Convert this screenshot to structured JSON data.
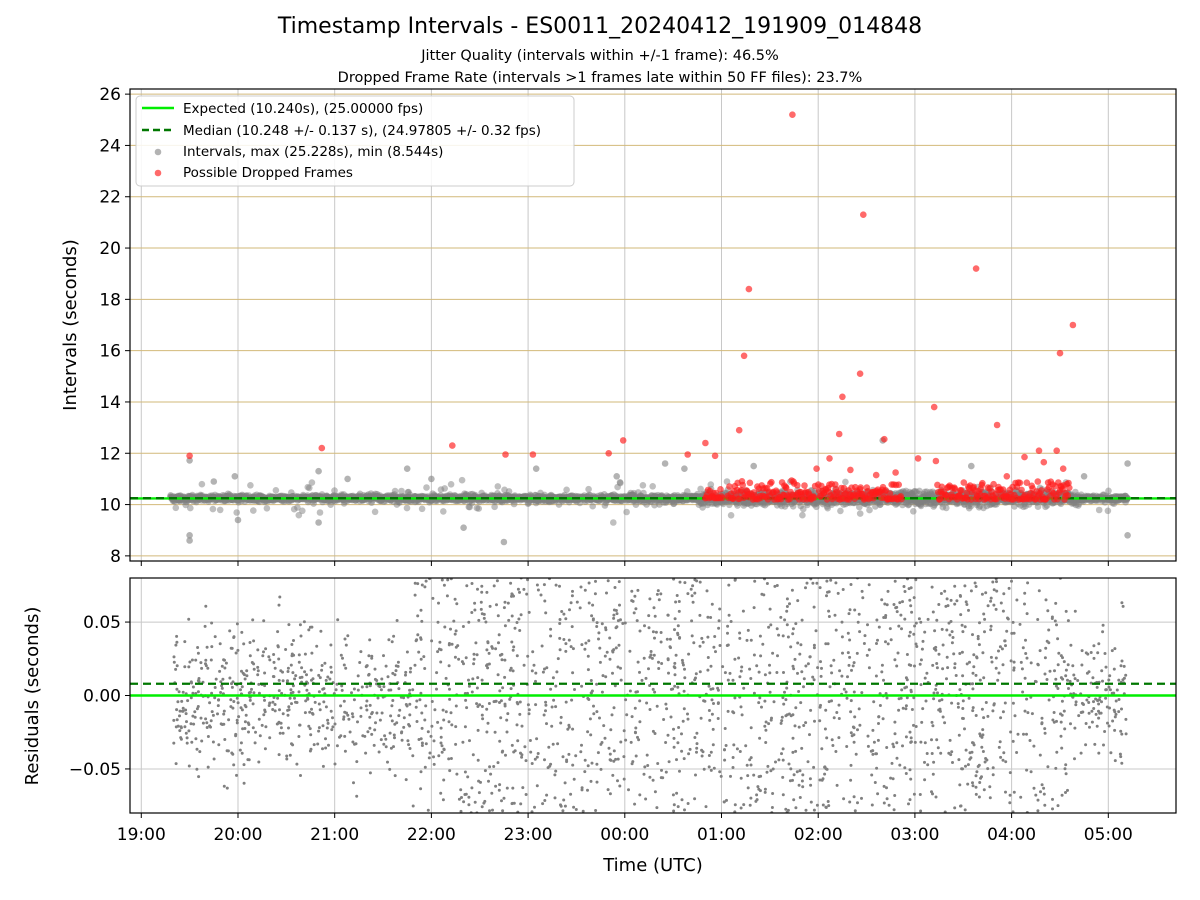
{
  "figure": {
    "title": "Timestamp Intervals - ES0011_20240412_191909_014848",
    "subtitle_1": "Jitter Quality (intervals within +/-1 frame): 46.5%",
    "subtitle_2": "Dropped Frame Rate (intervals >1 frames late within 50 FF files): 23.7%"
  },
  "colors": {
    "expected": "#00ee00",
    "median": "#007700",
    "intervals": "#808080",
    "dropped": "#ff1a1a",
    "hgrid_top": "#d2b97a",
    "grid": "#c8c8c8"
  },
  "chart_data": [
    {
      "type": "scatter",
      "panel": "intervals",
      "ylabel": "Intervals (seconds)",
      "xlim": [
        "18:53",
        "05:42"
      ],
      "ylim": [
        7.8,
        26.2
      ],
      "yticks": [
        8,
        10,
        12,
        14,
        16,
        18,
        20,
        22,
        24,
        26
      ],
      "grid": true,
      "legend_placement": "top-left",
      "legend": [
        "Expected (10.240s), (25.00000 fps)",
        "Median (10.248 +/- 0.137 s), (24.97805 +/- 0.32 fps)",
        "Intervals, max (25.228s), min (8.544s)",
        "Possible Dropped Frames"
      ],
      "expected": 10.24,
      "median": 10.248,
      "series": [
        {
          "name": "Intervals, max (25.228s), min (8.544s)",
          "time_range": [
            "19:18",
            "05:12"
          ],
          "center": 10.248,
          "notable_points": [
            {
              "x": "19:30",
              "y": 11.72
            },
            {
              "x": "19:30",
              "y": 8.8
            },
            {
              "x": "19:30",
              "y": 8.6
            },
            {
              "x": "19:45",
              "y": 10.9
            },
            {
              "x": "19:58",
              "y": 11.1
            },
            {
              "x": "20:00",
              "y": 9.4
            },
            {
              "x": "20:50",
              "y": 11.3
            },
            {
              "x": "20:50",
              "y": 9.3
            },
            {
              "x": "21:08",
              "y": 11.0
            },
            {
              "x": "21:45",
              "y": 11.4
            },
            {
              "x": "22:00",
              "y": 11.0
            },
            {
              "x": "22:20",
              "y": 9.1
            },
            {
              "x": "22:45",
              "y": 8.54
            },
            {
              "x": "23:05",
              "y": 11.4
            },
            {
              "x": "23:55",
              "y": 11.1
            },
            {
              "x": "00:25",
              "y": 11.6
            },
            {
              "x": "00:37",
              "y": 11.4
            },
            {
              "x": "01:20",
              "y": 11.5
            },
            {
              "x": "02:40",
              "y": 12.5
            },
            {
              "x": "03:35",
              "y": 11.5
            },
            {
              "x": "04:45",
              "y": 11.1
            },
            {
              "x": "05:12",
              "y": 11.6
            },
            {
              "x": "05:12",
              "y": 8.8
            }
          ]
        },
        {
          "name": "Possible Dropped Frames",
          "points": [
            {
              "x": "19:30",
              "y": 11.9
            },
            {
              "x": "20:52",
              "y": 12.2
            },
            {
              "x": "22:13",
              "y": 12.3
            },
            {
              "x": "22:46",
              "y": 11.95
            },
            {
              "x": "23:03",
              "y": 11.95
            },
            {
              "x": "23:50",
              "y": 12.0
            },
            {
              "x": "23:59",
              "y": 12.5
            },
            {
              "x": "00:39",
              "y": 11.95
            },
            {
              "x": "00:50",
              "y": 12.4
            },
            {
              "x": "00:56",
              "y": 11.9
            },
            {
              "x": "01:11",
              "y": 12.9
            },
            {
              "x": "01:14",
              "y": 15.8
            },
            {
              "x": "01:17",
              "y": 18.4
            },
            {
              "x": "01:44",
              "y": 25.2
            },
            {
              "x": "01:59",
              "y": 11.4
            },
            {
              "x": "02:07",
              "y": 11.8
            },
            {
              "x": "02:13",
              "y": 12.75
            },
            {
              "x": "02:15",
              "y": 14.2
            },
            {
              "x": "02:20",
              "y": 11.35
            },
            {
              "x": "02:26",
              "y": 15.1
            },
            {
              "x": "02:28",
              "y": 21.3
            },
            {
              "x": "02:36",
              "y": 11.15
            },
            {
              "x": "02:41",
              "y": 12.55
            },
            {
              "x": "02:48",
              "y": 11.25
            },
            {
              "x": "03:02",
              "y": 11.8
            },
            {
              "x": "03:12",
              "y": 13.8
            },
            {
              "x": "03:13",
              "y": 11.7
            },
            {
              "x": "03:38",
              "y": 19.2
            },
            {
              "x": "03:51",
              "y": 13.1
            },
            {
              "x": "03:57",
              "y": 11.1
            },
            {
              "x": "04:08",
              "y": 11.85
            },
            {
              "x": "04:17",
              "y": 12.1
            },
            {
              "x": "04:20",
              "y": 11.65
            },
            {
              "x": "04:28",
              "y": 12.1
            },
            {
              "x": "04:30",
              "y": 15.9
            },
            {
              "x": "04:32",
              "y": 11.4
            },
            {
              "x": "04:38",
              "y": 17.0
            }
          ],
          "clusters": [
            {
              "time_range": [
                "00:50",
                "01:01"
              ],
              "y_range": [
                10.25,
                10.6
              ]
            },
            {
              "time_range": [
                "01:04",
                "01:58"
              ],
              "y_range": [
                10.2,
                11.0
              ]
            },
            {
              "time_range": [
                "02:00",
                "02:52"
              ],
              "y_range": [
                10.2,
                10.8
              ]
            },
            {
              "time_range": [
                "03:14",
                "04:36"
              ],
              "y_range": [
                10.2,
                10.9
              ]
            }
          ]
        }
      ]
    },
    {
      "type": "scatter",
      "panel": "residuals",
      "xlabel": "Time (UTC)",
      "ylabel": "Residuals (seconds)",
      "xlim": [
        "18:53",
        "05:42"
      ],
      "ylim": [
        -0.08,
        0.08
      ],
      "xticks": [
        "19:00",
        "20:00",
        "21:00",
        "22:00",
        "23:00",
        "00:00",
        "01:00",
        "02:00",
        "03:00",
        "04:00",
        "05:00"
      ],
      "yticks": [
        -0.05,
        0.0,
        0.05
      ],
      "ytick_labels": [
        "−0.05",
        "0.00",
        "0.05"
      ],
      "grid": true,
      "expected_residual": 0.0,
      "median_residual": 0.008,
      "series": [
        {
          "name": "residuals",
          "time_range": [
            "19:20",
            "05:12"
          ],
          "y_range": [
            -0.08,
            0.08
          ]
        }
      ]
    }
  ]
}
